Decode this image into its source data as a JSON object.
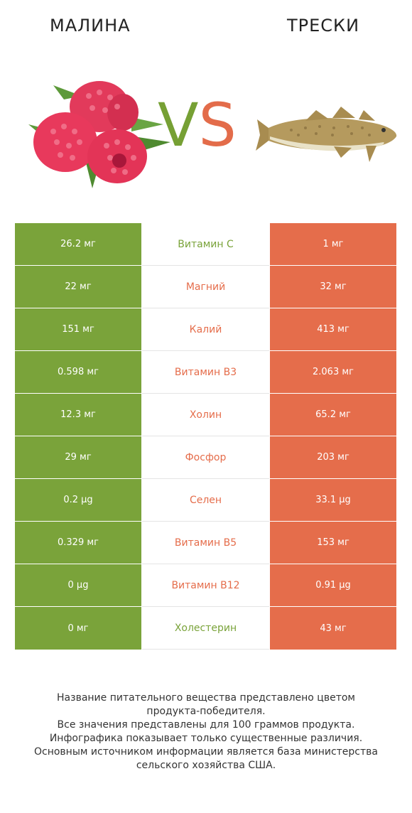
{
  "header": {
    "left_title": "МАЛИНА",
    "right_title": "ТРЕСКИ",
    "vs_v": "V",
    "vs_s": "S"
  },
  "colors": {
    "winner_left": "#7aa33a",
    "winner_right": "#e56d4b"
  },
  "images": {
    "left": "raspberry-image",
    "right": "cod-fish-image"
  },
  "chart_data": {
    "type": "table",
    "columns": [
      "Малина",
      "Трески"
    ],
    "rows": [
      {
        "nutrient": "Витамин C",
        "left": "26.2 мг",
        "right": "1 мг",
        "winner": "left"
      },
      {
        "nutrient": "Магний",
        "left": "22 мг",
        "right": "32 мг",
        "winner": "right"
      },
      {
        "nutrient": "Калий",
        "left": "151 мг",
        "right": "413 мг",
        "winner": "right"
      },
      {
        "nutrient": "Витамин B3",
        "left": "0.598 мг",
        "right": "2.063 мг",
        "winner": "right"
      },
      {
        "nutrient": "Холин",
        "left": "12.3 мг",
        "right": "65.2 мг",
        "winner": "right"
      },
      {
        "nutrient": "Фосфор",
        "left": "29 мг",
        "right": "203 мг",
        "winner": "right"
      },
      {
        "nutrient": "Селен",
        "left": "0.2 µg",
        "right": "33.1 µg",
        "winner": "right"
      },
      {
        "nutrient": "Витамин B5",
        "left": "0.329 мг",
        "right": "153 мг",
        "winner": "right"
      },
      {
        "nutrient": "Витамин B12",
        "left": "0 µg",
        "right": "0.91 µg",
        "winner": "right"
      },
      {
        "nutrient": "Холестерин",
        "left": "0 мг",
        "right": "43 мг",
        "winner": "left"
      }
    ]
  },
  "footer": {
    "lines": [
      "Название питательного вещества представлено цветом",
      "продукта-победителя.",
      "Все значения представлены для 100 граммов продукта.",
      "Инфографика показывает только существенные различия.",
      "Основным источником информации является база министерства",
      "сельского хозяйства США."
    ]
  }
}
